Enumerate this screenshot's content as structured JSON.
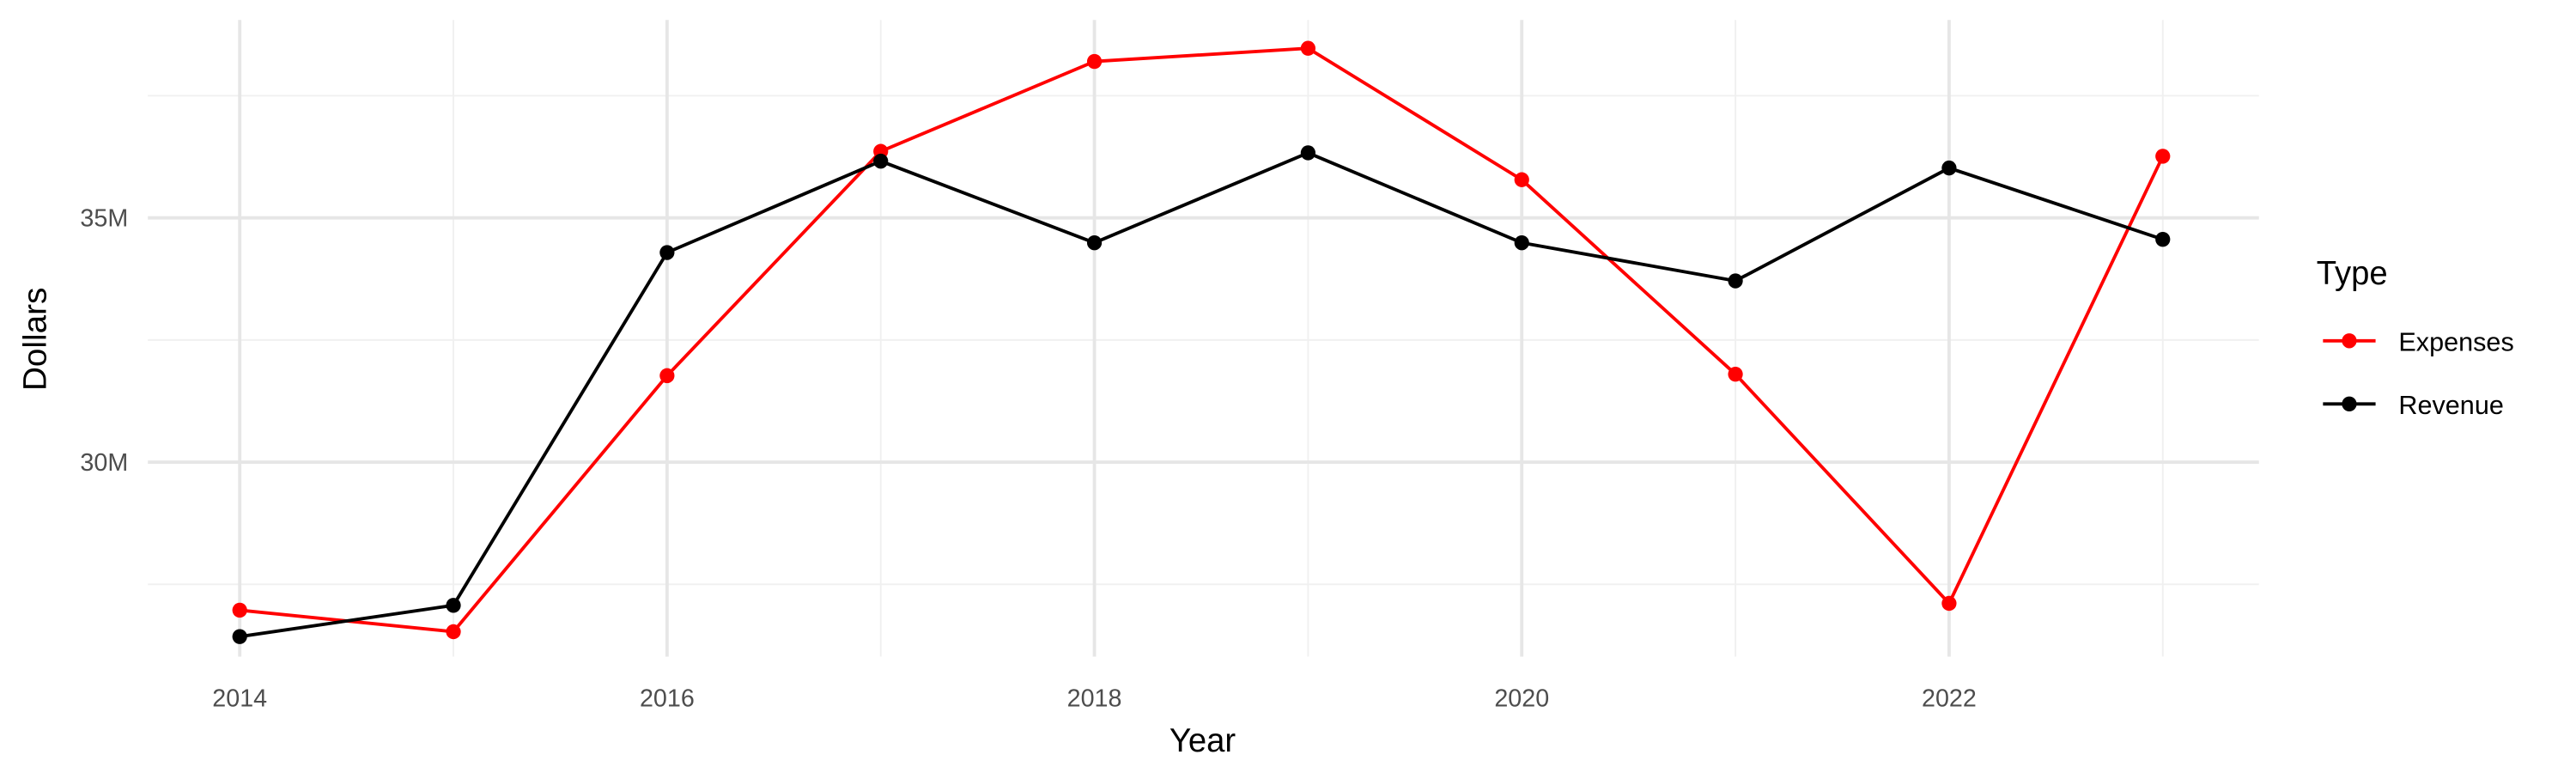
{
  "chart_data": {
    "type": "line",
    "x_label": "Year",
    "y_label": "Dollars",
    "legend_title": "Type",
    "legend_position": "right",
    "grid": true,
    "x": [
      2014,
      2015,
      2016,
      2017,
      2018,
      2019,
      2020,
      2021,
      2022,
      2023
    ],
    "series": [
      {
        "name": "Expenses",
        "color": "#ff0000",
        "values": [
          26970000,
          26530000,
          31770000,
          36360000,
          38200000,
          38470000,
          35780000,
          31800000,
          27110000,
          36260000
        ]
      },
      {
        "name": "Revenue",
        "color": "#000000",
        "values": [
          26430000,
          27070000,
          34290000,
          36160000,
          34490000,
          36330000,
          34490000,
          33710000,
          36020000,
          34560000
        ]
      }
    ],
    "xlim": [
      2013.57,
      2023.45
    ],
    "xticks": [
      2014,
      2016,
      2018,
      2020,
      2022
    ],
    "x_minor_gridlines": [
      2015,
      2017,
      2019,
      2021,
      2023
    ],
    "ylim": [
      26020000,
      39050000
    ],
    "yticks": [
      {
        "value": 30000000,
        "label": "30M"
      },
      {
        "value": 35000000,
        "label": "35M"
      }
    ],
    "y_minor_gridlines": [
      27500000,
      32500000,
      37500000
    ]
  }
}
